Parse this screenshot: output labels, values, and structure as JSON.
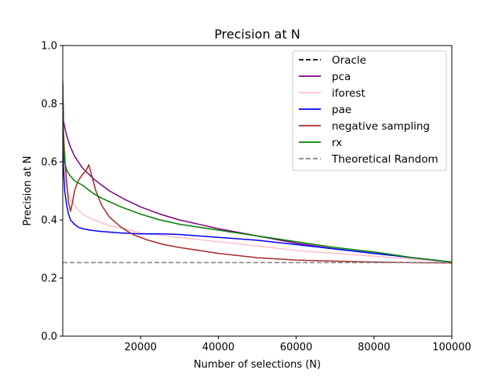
{
  "chart_data": {
    "type": "line",
    "title": "Precision at N",
    "xlabel": "Number of selections (N)",
    "ylabel": "Precision at N",
    "xlim": [
      0,
      100000
    ],
    "ylim": [
      0.0,
      1.0
    ],
    "xticks": [
      20000,
      40000,
      60000,
      80000,
      100000
    ],
    "xtick_labels": [
      "20000",
      "40000",
      "60000",
      "80000",
      "100000"
    ],
    "yticks": [
      0.0,
      0.2,
      0.4,
      0.6,
      0.8,
      1.0
    ],
    "ytick_labels": [
      "0.0",
      "0.2",
      "0.4",
      "0.6",
      "0.8",
      "1.0"
    ],
    "grid": false,
    "legend_position": "top-right",
    "series": [
      {
        "name": "Oracle",
        "color": "#000000",
        "style": "dashed",
        "x": [],
        "y": []
      },
      {
        "name": "pca",
        "color": "#800080",
        "style": "solid",
        "x": [
          0,
          200,
          500,
          1000,
          2000,
          3000,
          5000,
          8000,
          12000,
          16000,
          20000,
          25000,
          30000,
          40000,
          50000,
          60000,
          70000,
          80000,
          90000,
          100000
        ],
        "y": [
          0.87,
          0.74,
          0.72,
          0.69,
          0.65,
          0.62,
          0.58,
          0.54,
          0.5,
          0.47,
          0.445,
          0.42,
          0.4,
          0.37,
          0.345,
          0.32,
          0.3,
          0.285,
          0.27,
          0.253
        ]
      },
      {
        "name": "iforest",
        "color": "#ffc0cb",
        "style": "solid",
        "x": [
          0,
          200,
          500,
          1000,
          2000,
          3000,
          5000,
          8000,
          12000,
          16000,
          20000,
          30000,
          40000,
          50000,
          60000,
          70000,
          80000,
          90000,
          100000
        ],
        "y": [
          0.79,
          0.62,
          0.56,
          0.51,
          0.47,
          0.45,
          0.42,
          0.4,
          0.38,
          0.37,
          0.355,
          0.34,
          0.325,
          0.31,
          0.295,
          0.285,
          0.275,
          0.265,
          0.253
        ]
      },
      {
        "name": "pae",
        "color": "#0000ff",
        "style": "solid",
        "x": [
          0,
          200,
          500,
          1000,
          1500,
          2000,
          3000,
          4000,
          5000,
          7000,
          10000,
          15000,
          20000,
          25000,
          30000,
          40000,
          50000,
          60000,
          70000,
          80000,
          90000,
          100000
        ],
        "y": [
          0.68,
          0.57,
          0.5,
          0.45,
          0.42,
          0.4,
          0.385,
          0.375,
          0.37,
          0.365,
          0.36,
          0.355,
          0.352,
          0.352,
          0.35,
          0.34,
          0.33,
          0.315,
          0.3,
          0.285,
          0.27,
          0.255
        ]
      },
      {
        "name": "negative sampling",
        "color": "#a52a2a",
        "style": "solid",
        "x": [
          0,
          100,
          300,
          600,
          1000,
          1500,
          2000,
          2500,
          3000,
          4000,
          5000,
          6000,
          6700,
          7500,
          8500,
          10000,
          12000,
          15000,
          18000,
          22000,
          26000,
          30000,
          40000,
          50000,
          60000,
          70000,
          80000,
          90000,
          100000
        ],
        "y": [
          0.88,
          0.74,
          0.67,
          0.6,
          0.53,
          0.46,
          0.43,
          0.46,
          0.5,
          0.535,
          0.555,
          0.57,
          0.59,
          0.55,
          0.5,
          0.45,
          0.41,
          0.375,
          0.35,
          0.33,
          0.315,
          0.305,
          0.285,
          0.27,
          0.262,
          0.258,
          0.255,
          0.253,
          0.252
        ]
      },
      {
        "name": "rx",
        "color": "#008000",
        "style": "solid",
        "x": [
          0,
          200,
          500,
          1000,
          2000,
          3000,
          5000,
          8000,
          10000,
          15000,
          20000,
          25000,
          30000,
          40000,
          50000,
          60000,
          70000,
          80000,
          90000,
          100000
        ],
        "y": [
          0.8,
          0.66,
          0.6,
          0.57,
          0.55,
          0.535,
          0.52,
          0.49,
          0.475,
          0.445,
          0.42,
          0.4,
          0.385,
          0.365,
          0.345,
          0.325,
          0.305,
          0.29,
          0.27,
          0.255
        ]
      },
      {
        "name": "Theoretical Random",
        "color": "#808080",
        "style": "dashed",
        "x": [
          0,
          100000
        ],
        "y": [
          0.253,
          0.253
        ]
      }
    ]
  }
}
